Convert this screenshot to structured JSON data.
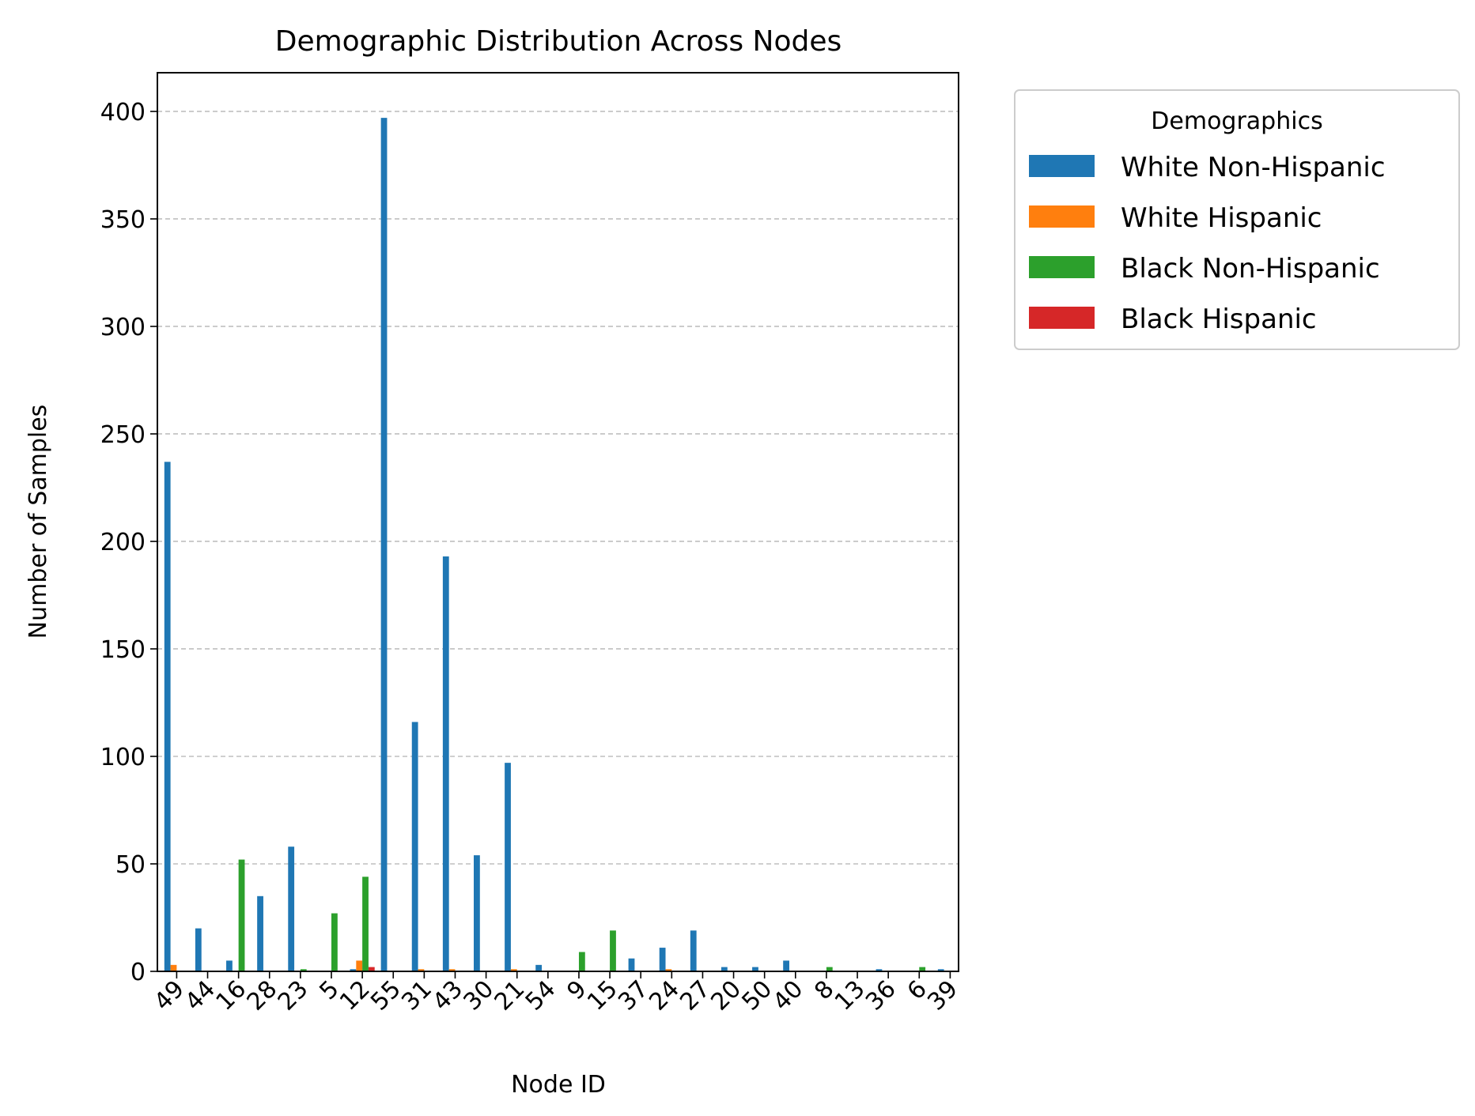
{
  "chart_data": {
    "type": "bar",
    "title": "Demographic Distribution Across Nodes",
    "xlabel": "Node ID",
    "ylabel": "Number of Samples",
    "ylim": [
      0,
      418
    ],
    "yticks": [
      0,
      50,
      100,
      150,
      200,
      250,
      300,
      350,
      400
    ],
    "grid": "y-dashed",
    "x_tick_rotation": 45,
    "legend": {
      "title": "Demographics",
      "placement": "outside-top-right"
    },
    "categories": [
      "49",
      "44",
      "16",
      "28",
      "23",
      "5",
      "12",
      "55",
      "31",
      "43",
      "30",
      "21",
      "54",
      "9",
      "15",
      "37",
      "24",
      "27",
      "20",
      "50",
      "40",
      "8",
      "13",
      "36",
      "6",
      "39"
    ],
    "series": [
      {
        "name": "White Non-Hispanic",
        "color": "#1f77b4",
        "values": [
          237,
          20,
          5,
          35,
          58,
          0,
          1,
          397,
          116,
          193,
          54,
          97,
          3,
          0,
          0,
          6,
          11,
          19,
          2,
          2,
          5,
          0,
          0,
          1,
          0,
          1
        ]
      },
      {
        "name": "White Hispanic",
        "color": "#ff7f0e",
        "values": [
          3,
          0,
          0,
          0,
          0,
          0,
          5,
          0,
          1,
          1,
          0,
          1,
          0,
          0,
          0,
          0,
          1,
          0,
          0,
          0,
          0,
          0,
          0,
          0,
          0,
          0
        ]
      },
      {
        "name": "Black Non-Hispanic",
        "color": "#2ca02c",
        "values": [
          0,
          0,
          52,
          0,
          1,
          27,
          44,
          0,
          0,
          0,
          0,
          0,
          0,
          9,
          19,
          0,
          0,
          0,
          0,
          0,
          0,
          2,
          0,
          0,
          2,
          0
        ]
      },
      {
        "name": "Black Hispanic",
        "color": "#d62728",
        "values": [
          0,
          0,
          0,
          0,
          0,
          0,
          2,
          0,
          0,
          0,
          0,
          0,
          0,
          0,
          0,
          0,
          0,
          0,
          0,
          0,
          0,
          0,
          0,
          0,
          0,
          0
        ]
      }
    ]
  }
}
